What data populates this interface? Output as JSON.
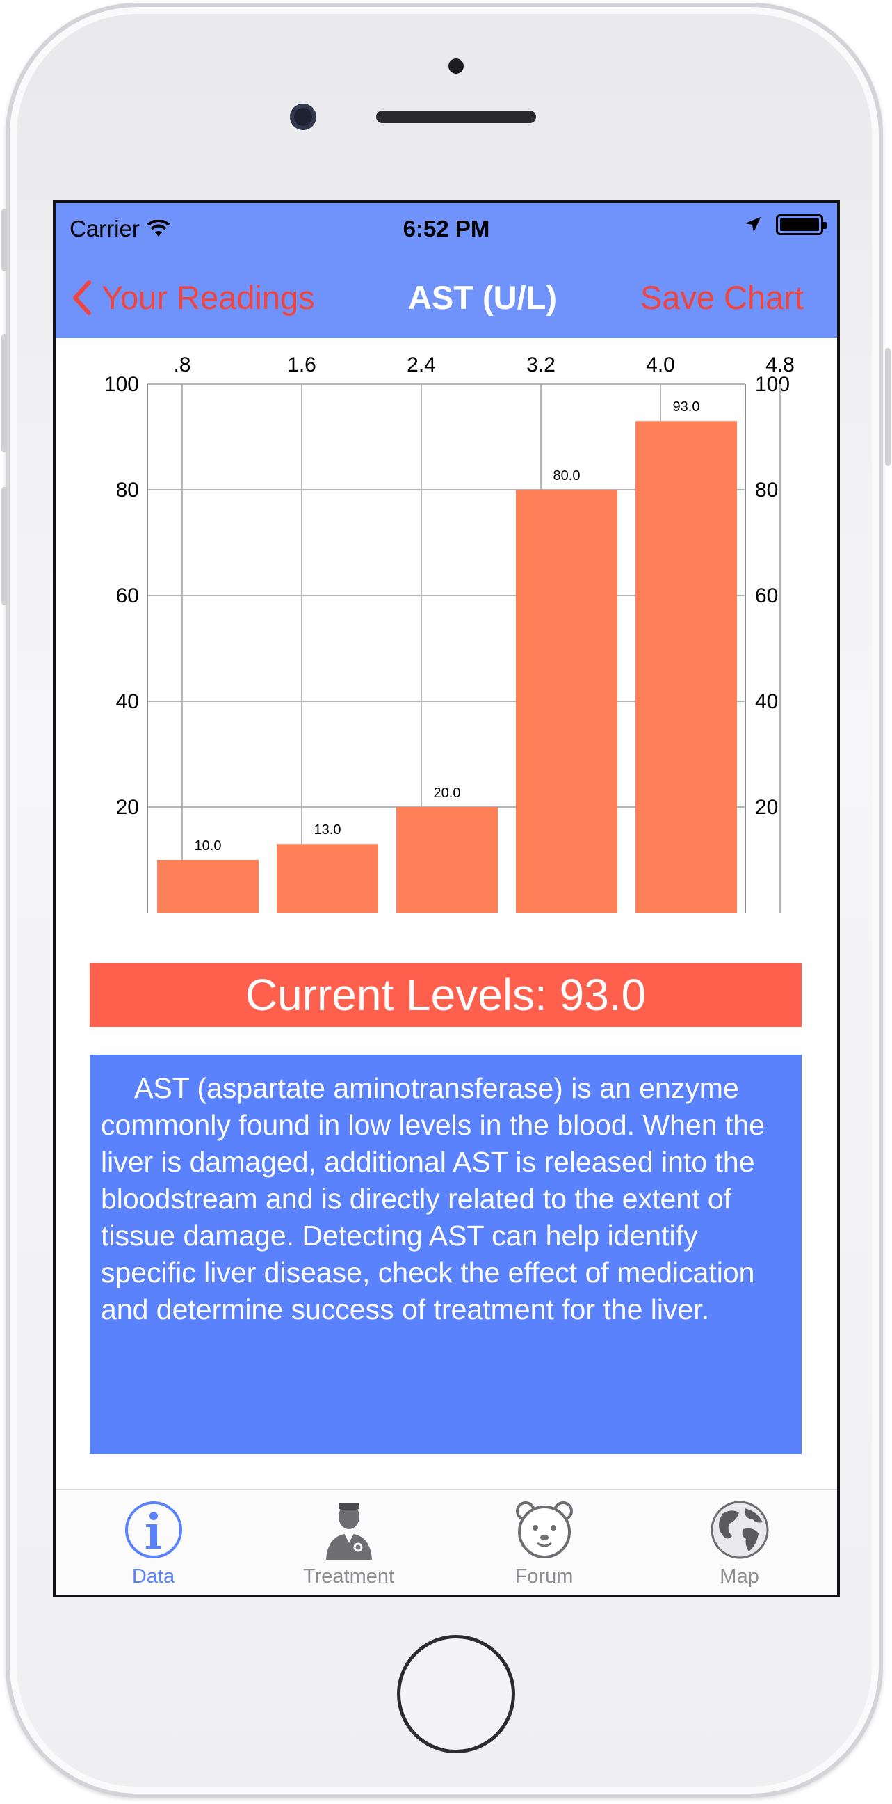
{
  "status_bar": {
    "carrier": "Carrier",
    "time": "6:52 PM"
  },
  "nav": {
    "back_label": "Your Readings",
    "title": "AST (U/L)",
    "save_label": "Save Chart"
  },
  "chart_data": {
    "type": "bar",
    "top_axis_ticks": [
      ".8",
      "1.6",
      "2.4",
      "3.2",
      "4.0",
      "4.8"
    ],
    "y_ticks": [
      "100",
      "80",
      "60",
      "40",
      "20"
    ],
    "ylim": [
      0,
      100
    ],
    "values": [
      10.0,
      13.0,
      20.0,
      80.0,
      93.0
    ],
    "data_labels": [
      "10.0",
      "13.0",
      "20.0",
      "80.0",
      "93.0"
    ],
    "bar_color": "#fe8059",
    "grid": true
  },
  "current_levels": "Current Levels: 93.0",
  "description": "AST (aspartate aminotransferase) is an enzyme commonly found in low levels in the blood. When the liver is damaged, additional AST is released into the bloodstream and is directly related to the extent of tissue damage. Detecting AST can help identify specific liver disease, check the effect of medication and determine success of treatment for the liver.",
  "tabs": [
    {
      "label": "Data",
      "icon": "info-icon",
      "active": true
    },
    {
      "label": "Treatment",
      "icon": "doctor-icon",
      "active": false
    },
    {
      "label": "Forum",
      "icon": "bear-icon",
      "active": false
    },
    {
      "label": "Map",
      "icon": "globe-icon",
      "active": false
    }
  ],
  "colors": {
    "nav": "#6f93fb",
    "accent_red": "#f0453e",
    "current_bar": "#ff5f4d",
    "desc_bg": "#5b82fd"
  }
}
